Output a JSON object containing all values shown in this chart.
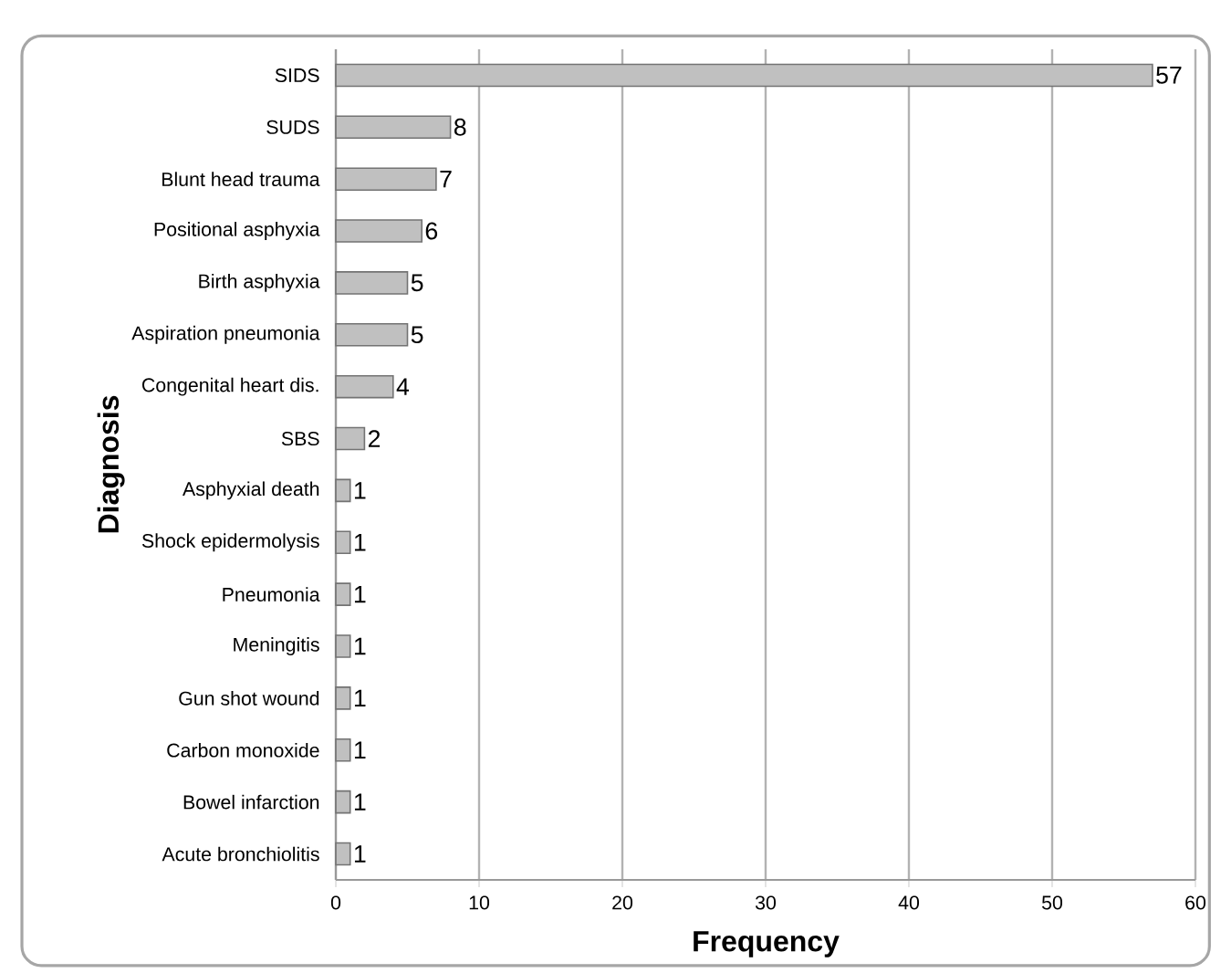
{
  "chart_data": {
    "type": "bar",
    "orientation": "horizontal",
    "xlabel": "Frequency",
    "ylabel": "Diagnosis",
    "categories": [
      "SIDS",
      "SUDS",
      "Blunt head trauma",
      "Positional asphyxia",
      "Birth asphyxia",
      "Aspiration pneumonia",
      "Congenital heart dis.",
      "SBS",
      "Asphyxial death",
      "Shock epidermolysis",
      "Pneumonia",
      "Meningitis",
      "Gun shot wound",
      "Carbon monoxide",
      "Bowel infarction",
      "Acute bronchiolitis"
    ],
    "values": [
      57,
      8,
      7,
      6,
      5,
      5,
      4,
      2,
      1,
      1,
      1,
      1,
      1,
      1,
      1,
      1
    ],
    "color": "#c0c0c0",
    "xlim": [
      0,
      60
    ],
    "xticks": [
      0,
      10,
      20,
      30,
      40,
      50,
      60
    ],
    "grid": "x",
    "data_labels": true
  }
}
